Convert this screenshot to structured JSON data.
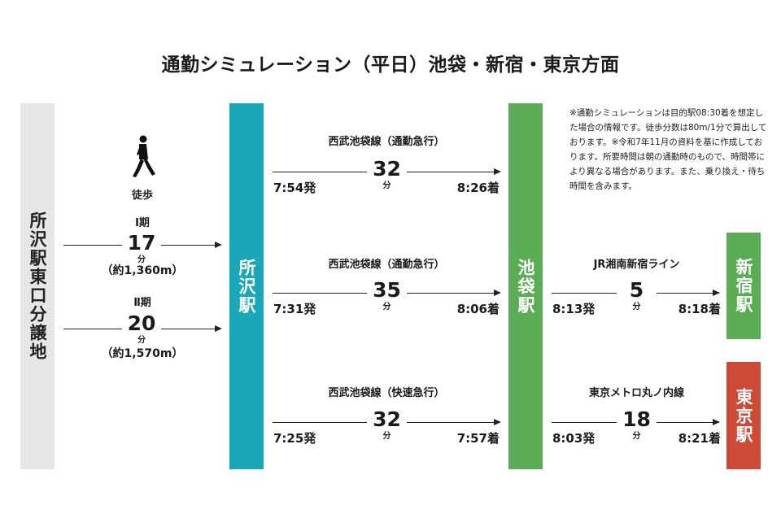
{
  "title": "通勤シミュレーション（平日）池袋・新宿・東京方面",
  "colors": {
    "tokorozawa": "#1aa8b8",
    "ikebukuro": "#5aad55",
    "shinjuku": "#5aad55",
    "tokyo": "#cc4a36",
    "origin_bg": "#e6e6e6"
  },
  "origin": {
    "label": "所沢駅東口分譲地"
  },
  "walk": {
    "icon": "walking-person-icon",
    "label": "徒歩",
    "phase1": {
      "label": "Ⅰ期",
      "minutes": "17",
      "unit": "分",
      "distance": "（約1,360m）"
    },
    "phase2": {
      "label": "Ⅱ期",
      "minutes": "20",
      "unit": "分",
      "distance": "（約1,570m）"
    }
  },
  "stations": {
    "tokorozawa": "所沢駅",
    "ikebukuro": "池袋駅",
    "shinjuku": "新宿駅",
    "tokyo": "東京駅"
  },
  "routes": [
    {
      "name": "西武池袋線（通勤急行）",
      "minutes": "32",
      "unit": "分",
      "depart": "7:54発",
      "arrive": "8:26着"
    },
    {
      "name": "西武池袋線（通勤急行）",
      "minutes": "35",
      "unit": "分",
      "depart": "7:31発",
      "arrive": "8:06着"
    },
    {
      "name": "西武池袋線（快速急行）",
      "minutes": "32",
      "unit": "分",
      "depart": "7:25発",
      "arrive": "7:57着"
    }
  ],
  "transfers": [
    {
      "name": "JR湘南新宿ライン",
      "minutes": "5",
      "unit": "分",
      "depart": "8:13発",
      "arrive": "8:18着"
    },
    {
      "name": "東京メトロ丸ノ内線",
      "minutes": "18",
      "unit": "分",
      "depart": "8:03発",
      "arrive": "8:21着"
    }
  ],
  "note": "※通勤シミュレーションは目的駅08:30着を想定した場合の情報です。徒歩分数は80m/1分で算出しております。※令和7年11月の資料を基に作成しております。所要時間は朝の通勤時のもので、時間帯により異なる場合があります。また、乗り換え・待ち時間を含みます。"
}
